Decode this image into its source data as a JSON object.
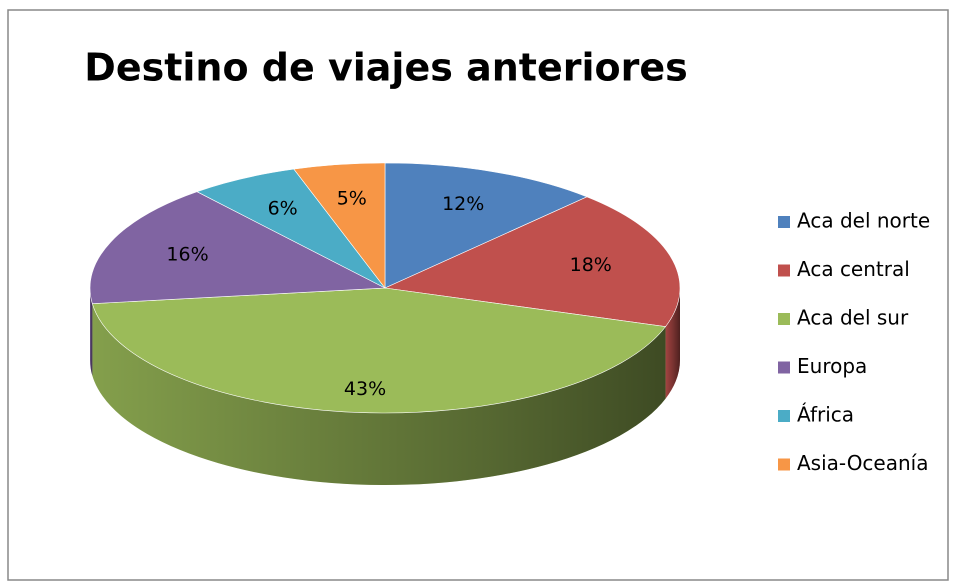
{
  "chart_data": {
    "type": "pie",
    "title": "Destino de viajes anteriores",
    "categories": [
      "Aca del norte",
      "Aca central",
      "Aca del sur",
      "Europa",
      "África",
      "Asia-Oceanía"
    ],
    "values": [
      12,
      18,
      43,
      16,
      6,
      5
    ],
    "value_labels": [
      "12%",
      "18%",
      "43%",
      "16%",
      "6%",
      "5%"
    ],
    "colors": [
      "#4f81bd",
      "#c0504d",
      "#9bbb59",
      "#8064a2",
      "#4bacc6",
      "#f79646"
    ],
    "legend": "right"
  }
}
